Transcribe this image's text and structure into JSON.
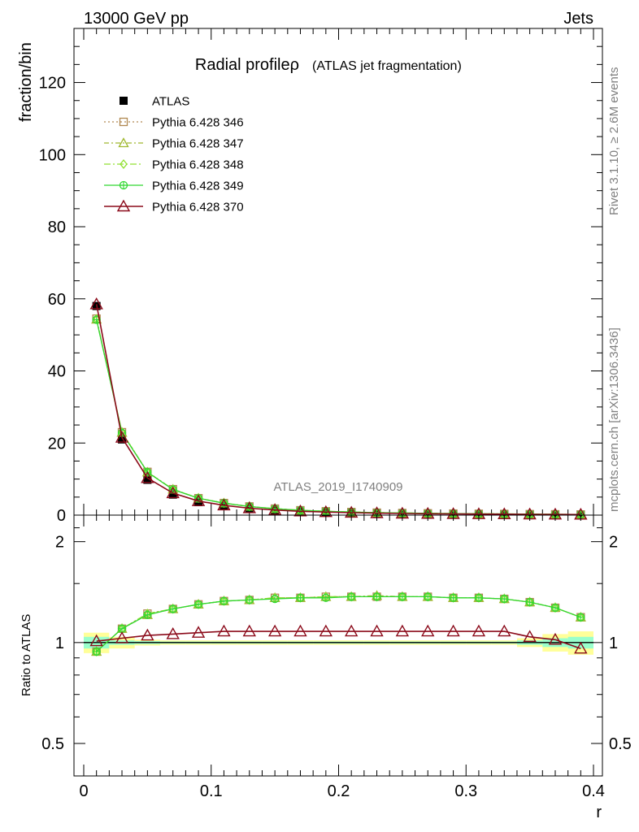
{
  "header": {
    "left": "13000 GeV pp",
    "right": "Jets"
  },
  "side_labels": {
    "rivet": "Rivet 3.1.10, ≥ 2.6M events",
    "mcplots": "mcplots.cern.ch [arXiv:1306.3436]"
  },
  "analysis_label": "ATLAS_2019_I1740909",
  "colors": {
    "data": "#000000",
    "p346": "#b08850",
    "p347": "#a0b830",
    "p348": "#90e030",
    "p349": "#30d830",
    "p370": "#8b0a1a",
    "band_outer": "#ffff99",
    "band_inner": "#99ffcc"
  },
  "chart_data": [
    {
      "type": "line",
      "title": "Radial profileρ (ATLAS jet fragmentation)",
      "title_main": "Radial profileρ",
      "title_sub": "(ATLAS jet fragmentation)",
      "xlabel": "r",
      "ylabel": "fraction/bin",
      "xlim": [
        0,
        0.4
      ],
      "ylim": [
        0,
        135
      ],
      "yticks": [
        0,
        20,
        40,
        60,
        80,
        100,
        120
      ],
      "grid": false,
      "legend_position": "top-left",
      "x": [
        0.01,
        0.03,
        0.05,
        0.07,
        0.09,
        0.11,
        0.13,
        0.15,
        0.17,
        0.19,
        0.21,
        0.23,
        0.25,
        0.27,
        0.29,
        0.31,
        0.33,
        0.35,
        0.37,
        0.39
      ],
      "series": [
        {
          "name": "ATLAS",
          "key": "data",
          "marker": "filled-square",
          "values": [
            58.0,
            21.0,
            9.8,
            5.7,
            3.6,
            2.5,
            1.75,
            1.3,
            0.98,
            0.78,
            0.62,
            0.5,
            0.42,
            0.36,
            0.31,
            0.27,
            0.24,
            0.21,
            0.18,
            0.16
          ]
        },
        {
          "name": "Pythia 6.428 346",
          "key": "p346",
          "marker": "open-square",
          "dash": "2,3",
          "values": [
            54.5,
            23.0,
            12.0,
            7.2,
            4.7,
            3.35,
            2.4,
            1.8,
            1.35,
            1.07,
            0.86,
            0.69,
            0.58,
            0.5,
            0.43,
            0.37,
            0.33,
            0.28,
            0.23,
            0.19
          ]
        },
        {
          "name": "Pythia 6.428 347",
          "key": "p347",
          "marker": "open-triangle",
          "dash": "6,3,2,3",
          "values": [
            54.3,
            22.9,
            11.9,
            7.15,
            4.68,
            3.33,
            2.39,
            1.79,
            1.34,
            1.06,
            0.85,
            0.69,
            0.58,
            0.5,
            0.43,
            0.37,
            0.33,
            0.28,
            0.23,
            0.19
          ]
        },
        {
          "name": "Pythia 6.428 348",
          "key": "p348",
          "marker": "open-diamond",
          "dash": "8,3,2,3",
          "values": [
            54.4,
            23.0,
            11.95,
            7.18,
            4.7,
            3.34,
            2.4,
            1.8,
            1.35,
            1.07,
            0.86,
            0.69,
            0.58,
            0.5,
            0.43,
            0.37,
            0.33,
            0.28,
            0.23,
            0.19
          ]
        },
        {
          "name": "Pythia 6.428 349",
          "key": "p349",
          "marker": "open-circle-cross",
          "dash": "",
          "values": [
            54.2,
            22.8,
            11.9,
            7.1,
            4.66,
            3.32,
            2.38,
            1.78,
            1.34,
            1.06,
            0.85,
            0.68,
            0.58,
            0.5,
            0.43,
            0.37,
            0.33,
            0.28,
            0.23,
            0.19
          ]
        },
        {
          "name": "Pythia 6.428 370",
          "key": "p370",
          "marker": "open-triangle-large",
          "dash": "",
          "values": [
            58.5,
            21.5,
            10.3,
            6.1,
            3.9,
            2.73,
            1.92,
            1.43,
            1.06,
            0.85,
            0.68,
            0.55,
            0.45,
            0.39,
            0.33,
            0.29,
            0.26,
            0.22,
            0.18,
            0.15
          ]
        }
      ]
    },
    {
      "type": "line",
      "title": "",
      "xlabel": "r",
      "ylabel": "Ratio to ATLAS",
      "xlim": [
        0,
        0.4
      ],
      "ylim": [
        0.4,
        2.4
      ],
      "yscale": "log",
      "yticks": [
        0.5,
        1,
        2
      ],
      "ytick_labels": [
        "0.5",
        "1",
        "2"
      ],
      "xticks": [
        0,
        0.1,
        0.2,
        0.3,
        0.4
      ],
      "xtick_labels": [
        "0",
        "0.1",
        "0.2",
        "0.3",
        "0.4"
      ],
      "x": [
        0.01,
        0.03,
        0.05,
        0.07,
        0.09,
        0.11,
        0.13,
        0.15,
        0.17,
        0.19,
        0.21,
        0.23,
        0.25,
        0.27,
        0.29,
        0.31,
        0.33,
        0.35,
        0.37,
        0.39
      ],
      "band": {
        "outer": [
          [
            0.93,
            1.07
          ],
          [
            0.96,
            1.04
          ],
          [
            0.98,
            1.02
          ],
          [
            0.985,
            1.015
          ],
          [
            0.985,
            1.015
          ],
          [
            0.985,
            1.015
          ],
          [
            0.985,
            1.015
          ],
          [
            0.985,
            1.015
          ],
          [
            0.985,
            1.015
          ],
          [
            0.985,
            1.015
          ],
          [
            0.985,
            1.015
          ],
          [
            0.985,
            1.015
          ],
          [
            0.985,
            1.015
          ],
          [
            0.985,
            1.015
          ],
          [
            0.985,
            1.015
          ],
          [
            0.985,
            1.015
          ],
          [
            0.985,
            1.015
          ],
          [
            0.97,
            1.03
          ],
          [
            0.94,
            1.06
          ],
          [
            0.92,
            1.08
          ]
        ],
        "inner": [
          [
            0.96,
            1.04
          ],
          [
            0.985,
            1.015
          ],
          [
            0.99,
            1.01
          ],
          [
            0.993,
            1.007
          ],
          [
            0.993,
            1.007
          ],
          [
            0.993,
            1.007
          ],
          [
            0.993,
            1.007
          ],
          [
            0.993,
            1.007
          ],
          [
            0.993,
            1.007
          ],
          [
            0.993,
            1.007
          ],
          [
            0.993,
            1.007
          ],
          [
            0.993,
            1.007
          ],
          [
            0.993,
            1.007
          ],
          [
            0.993,
            1.007
          ],
          [
            0.993,
            1.007
          ],
          [
            0.993,
            1.007
          ],
          [
            0.993,
            1.007
          ],
          [
            0.985,
            1.015
          ],
          [
            0.97,
            1.03
          ],
          [
            0.96,
            1.04
          ]
        ]
      },
      "series": [
        {
          "name": "Pythia 6.428 346",
          "key": "p346",
          "marker": "open-square",
          "dash": "2,3",
          "values": [
            0.94,
            1.1,
            1.22,
            1.26,
            1.3,
            1.33,
            1.34,
            1.36,
            1.36,
            1.37,
            1.37,
            1.37,
            1.37,
            1.37,
            1.36,
            1.36,
            1.35,
            1.32,
            1.27,
            1.19
          ]
        },
        {
          "name": "Pythia 6.428 347",
          "key": "p347",
          "marker": "open-triangle",
          "dash": "6,3,2,3",
          "values": [
            0.94,
            1.1,
            1.21,
            1.26,
            1.3,
            1.33,
            1.34,
            1.36,
            1.36,
            1.37,
            1.37,
            1.38,
            1.37,
            1.37,
            1.36,
            1.36,
            1.35,
            1.32,
            1.27,
            1.19
          ]
        },
        {
          "name": "Pythia 6.428 348",
          "key": "p348",
          "marker": "open-diamond",
          "dash": "8,3,2,3",
          "values": [
            0.94,
            1.1,
            1.22,
            1.26,
            1.3,
            1.33,
            1.34,
            1.36,
            1.36,
            1.37,
            1.37,
            1.37,
            1.37,
            1.37,
            1.36,
            1.36,
            1.35,
            1.32,
            1.27,
            1.19
          ]
        },
        {
          "name": "Pythia 6.428 349",
          "key": "p349",
          "marker": "open-circle-cross",
          "dash": "",
          "values": [
            0.94,
            1.1,
            1.21,
            1.26,
            1.3,
            1.33,
            1.34,
            1.35,
            1.36,
            1.36,
            1.37,
            1.37,
            1.37,
            1.37,
            1.36,
            1.36,
            1.35,
            1.32,
            1.27,
            1.19
          ]
        },
        {
          "name": "Pythia 6.428 370",
          "key": "p370",
          "marker": "open-triangle-large",
          "dash": "",
          "values": [
            1.01,
            1.03,
            1.05,
            1.06,
            1.07,
            1.08,
            1.08,
            1.08,
            1.08,
            1.08,
            1.08,
            1.08,
            1.08,
            1.08,
            1.08,
            1.08,
            1.08,
            1.04,
            1.02,
            0.96
          ]
        }
      ]
    }
  ]
}
